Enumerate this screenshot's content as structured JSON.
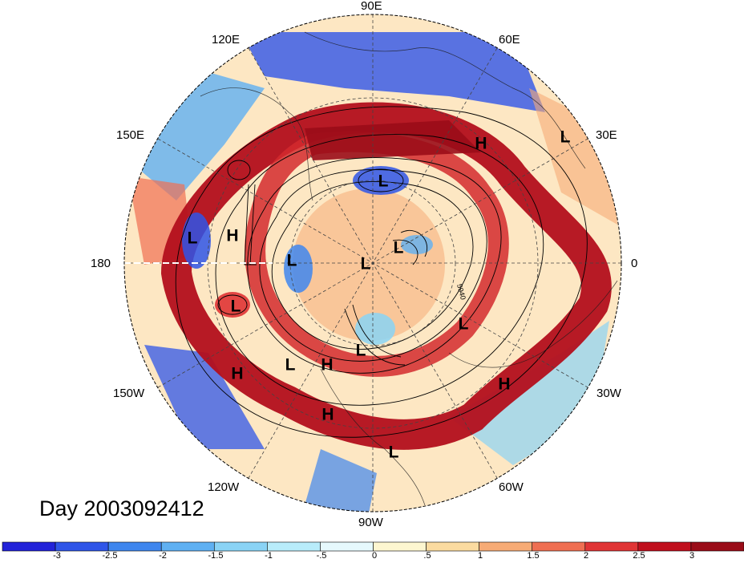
{
  "map": {
    "projection": "north-polar-stereographic",
    "longitude_labels": [
      "90E",
      "60E",
      "30E",
      "0",
      "30W",
      "60W",
      "90W",
      "120W",
      "150W",
      "180",
      "150E",
      "120E"
    ],
    "day_label": "Day 2003092412",
    "contour_marker": "5940",
    "pressure_centers": [
      {
        "label": "H"
      },
      {
        "label": "L"
      },
      {
        "label": "L"
      },
      {
        "label": "L"
      },
      {
        "label": "L"
      },
      {
        "label": "L"
      },
      {
        "label": "H"
      },
      {
        "label": "L"
      },
      {
        "label": "L"
      },
      {
        "label": "L"
      },
      {
        "label": "L"
      },
      {
        "label": "H"
      },
      {
        "label": "L"
      },
      {
        "label": "H"
      },
      {
        "label": "H"
      },
      {
        "label": "H"
      },
      {
        "label": "L"
      }
    ]
  },
  "colorbar": {
    "tick_labels": [
      "-3",
      "-2.5",
      "-2",
      "-1.5",
      "-1",
      "-.5",
      "0",
      ".5",
      "1",
      "1.5",
      "2",
      "2.5",
      "3"
    ],
    "colors": [
      "#2323d9",
      "#2f55e8",
      "#3f86ee",
      "#5fb0f2",
      "#8ad3f5",
      "#b8ecfa",
      "#e6f9fd",
      "#fdf6d0",
      "#fbdba0",
      "#f6ab76",
      "#ef6f52",
      "#e03435",
      "#c00f1d",
      "#9a0c18"
    ]
  }
}
